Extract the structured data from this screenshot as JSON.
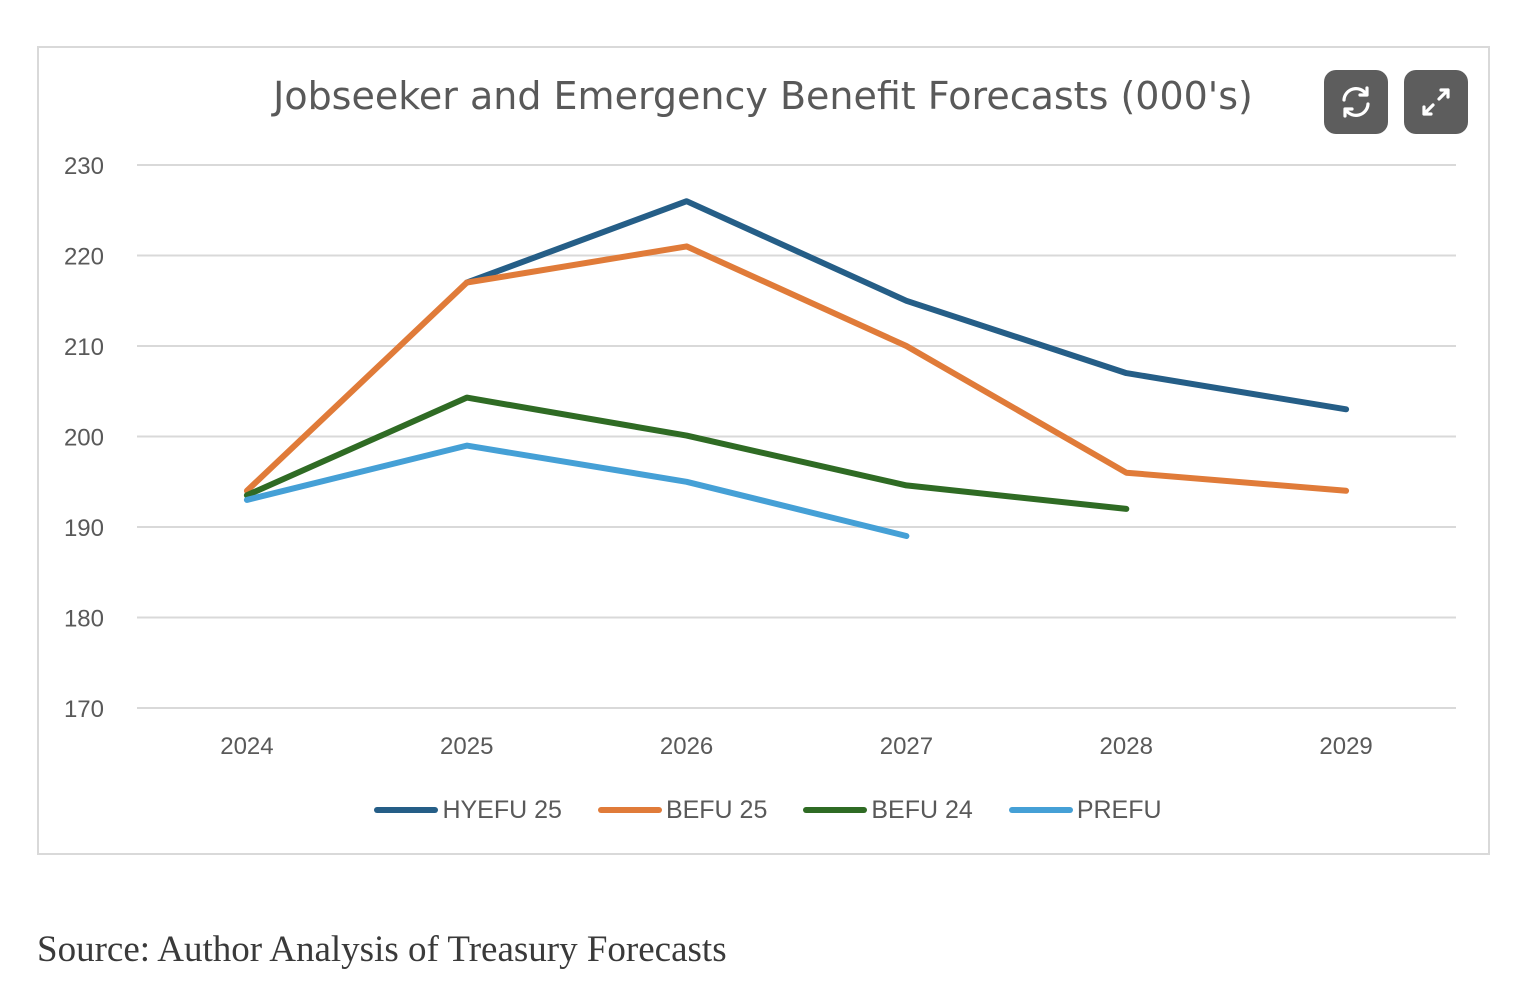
{
  "chart_data": {
    "type": "line",
    "title": "Jobseeker and Emergency Benefit Forecasts (000's)",
    "xlabel": "",
    "ylabel": "",
    "categories": [
      "2024",
      "2025",
      "2026",
      "2027",
      "2028",
      "2029"
    ],
    "ylim": [
      170,
      230
    ],
    "yticks": [
      230,
      220,
      210,
      200,
      190,
      180,
      170
    ],
    "grid": true,
    "legend_position": "bottom",
    "series": [
      {
        "name": "HYEFU 25",
        "color": "#255e87",
        "values": [
          null,
          217,
          226,
          215,
          207,
          203
        ]
      },
      {
        "name": "BEFU 25",
        "color": "#e07b39",
        "values": [
          194,
          217,
          221,
          210,
          196,
          194
        ]
      },
      {
        "name": "BEFU 24",
        "color": "#2f6b24",
        "values": [
          193.5,
          204.3,
          200.1,
          194.6,
          192,
          null
        ]
      },
      {
        "name": "PREFU",
        "color": "#45a0d6",
        "values": [
          193,
          199,
          195,
          189,
          null,
          null
        ]
      }
    ]
  },
  "toolbar": {
    "refresh_icon": "refresh-icon",
    "expand_icon": "expand-icon"
  },
  "source_text": "Source: Author Analysis of Treasury Forecasts"
}
